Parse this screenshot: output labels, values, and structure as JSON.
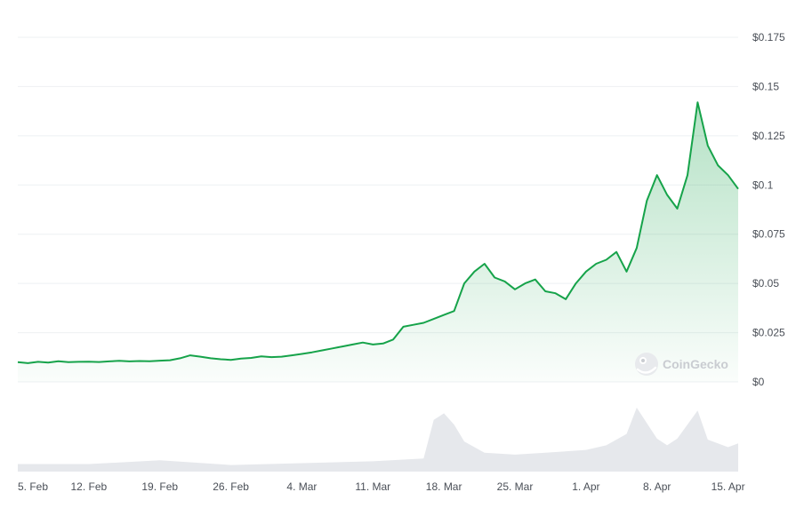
{
  "chart_data": {
    "type": "line",
    "title": "",
    "xlabel": "",
    "ylabel": "",
    "y_unit_prefix": "$",
    "ylim": [
      0,
      0.175
    ],
    "yticks": [
      0,
      0.025,
      0.05,
      0.075,
      0.1,
      0.125,
      0.15,
      0.175
    ],
    "ytick_labels": [
      "$0",
      "$0.025",
      "$0.05",
      "$0.075",
      "$0.1",
      "$0.125",
      "$0.15",
      "$0.175"
    ],
    "xlim": [
      "2024-02-05",
      "2024-04-16"
    ],
    "xtick_dates": [
      "2024-02-05",
      "2024-02-12",
      "2024-02-19",
      "2024-02-26",
      "2024-03-04",
      "2024-03-11",
      "2024-03-18",
      "2024-03-25",
      "2024-04-01",
      "2024-04-08",
      "2024-04-15"
    ],
    "xtick_labels": [
      "5. Feb",
      "12. Feb",
      "19. Feb",
      "26. Feb",
      "4. Mar",
      "11. Mar",
      "18. Mar",
      "25. Mar",
      "1. Apr",
      "8. Apr",
      "15. Apr"
    ],
    "grid": true,
    "line_color": "#16a34a",
    "volume_color": "#e6e8ec",
    "price": {
      "x": [
        "2024-02-05",
        "2024-02-06",
        "2024-02-07",
        "2024-02-08",
        "2024-02-09",
        "2024-02-10",
        "2024-02-11",
        "2024-02-12",
        "2024-02-13",
        "2024-02-14",
        "2024-02-15",
        "2024-02-16",
        "2024-02-17",
        "2024-02-18",
        "2024-02-19",
        "2024-02-20",
        "2024-02-21",
        "2024-02-22",
        "2024-02-23",
        "2024-02-24",
        "2024-02-25",
        "2024-02-26",
        "2024-02-27",
        "2024-02-28",
        "2024-02-29",
        "2024-03-01",
        "2024-03-02",
        "2024-03-03",
        "2024-03-04",
        "2024-03-05",
        "2024-03-06",
        "2024-03-07",
        "2024-03-08",
        "2024-03-09",
        "2024-03-10",
        "2024-03-11",
        "2024-03-12",
        "2024-03-13",
        "2024-03-14",
        "2024-03-15",
        "2024-03-16",
        "2024-03-17",
        "2024-03-18",
        "2024-03-19",
        "2024-03-20",
        "2024-03-21",
        "2024-03-22",
        "2024-03-23",
        "2024-03-24",
        "2024-03-25",
        "2024-03-26",
        "2024-03-27",
        "2024-03-28",
        "2024-03-29",
        "2024-03-30",
        "2024-03-31",
        "2024-04-01",
        "2024-04-02",
        "2024-04-03",
        "2024-04-04",
        "2024-04-05",
        "2024-04-06",
        "2024-04-07",
        "2024-04-08",
        "2024-04-09",
        "2024-04-10",
        "2024-04-11",
        "2024-04-12",
        "2024-04-13",
        "2024-04-14",
        "2024-04-15",
        "2024-04-16"
      ],
      "y": [
        0.01,
        0.0095,
        0.0102,
        0.0098,
        0.0105,
        0.01,
        0.0102,
        0.0103,
        0.0101,
        0.0104,
        0.0107,
        0.0104,
        0.0106,
        0.0105,
        0.0108,
        0.011,
        0.012,
        0.0135,
        0.0128,
        0.012,
        0.0115,
        0.0112,
        0.0118,
        0.0122,
        0.013,
        0.0126,
        0.0128,
        0.0135,
        0.0142,
        0.015,
        0.016,
        0.017,
        0.018,
        0.019,
        0.02,
        0.019,
        0.0195,
        0.0215,
        0.028,
        0.029,
        0.03,
        0.032,
        0.034,
        0.036,
        0.05,
        0.056,
        0.06,
        0.053,
        0.051,
        0.047,
        0.05,
        0.052,
        0.046,
        0.045,
        0.042,
        0.05,
        0.056,
        0.06,
        0.062,
        0.066,
        0.056,
        0.068,
        0.092,
        0.105,
        0.095,
        0.088,
        0.105,
        0.142,
        0.12,
        0.11,
        0.105,
        0.098
      ]
    },
    "volume": {
      "x": [
        "2024-02-05",
        "2024-02-12",
        "2024-02-19",
        "2024-02-26",
        "2024-03-04",
        "2024-03-11",
        "2024-03-16",
        "2024-03-17",
        "2024-03-18",
        "2024-03-19",
        "2024-03-20",
        "2024-03-22",
        "2024-03-25",
        "2024-03-28",
        "2024-04-01",
        "2024-04-03",
        "2024-04-05",
        "2024-04-06",
        "2024-04-08",
        "2024-04-09",
        "2024-04-10",
        "2024-04-12",
        "2024-04-13",
        "2024-04-15",
        "2024-04-16"
      ],
      "y": [
        0.8,
        0.8,
        1.2,
        0.7,
        0.9,
        1.1,
        1.4,
        5.5,
        6.2,
        5.0,
        3.2,
        2.0,
        1.8,
        2.0,
        2.3,
        2.8,
        4.0,
        6.8,
        3.5,
        2.8,
        3.5,
        6.5,
        3.4,
        2.6,
        3.0
      ]
    }
  },
  "watermark": {
    "label": "CoinGecko"
  }
}
